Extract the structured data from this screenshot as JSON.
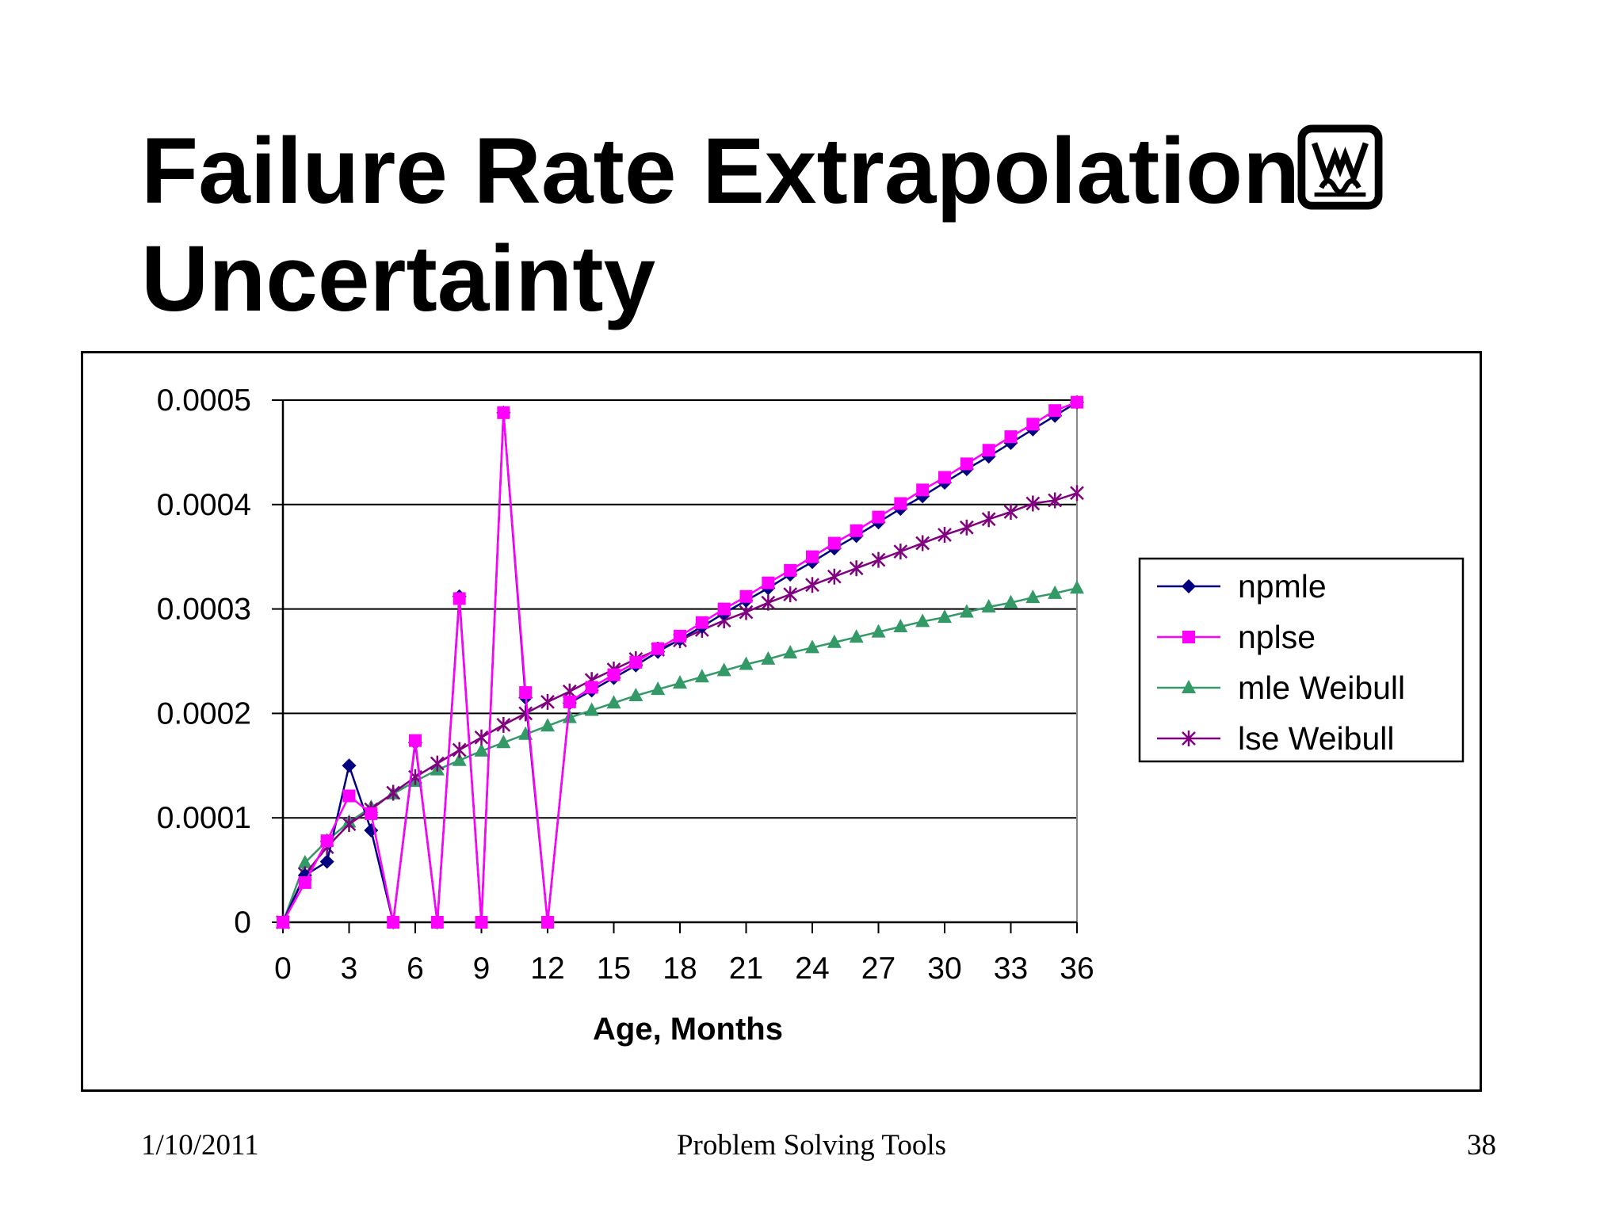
{
  "slide": {
    "title_line1": "Failure Rate Extrapolation",
    "title_line2": "Uncertainty"
  },
  "footer": {
    "date": "1/10/2011",
    "center": "Problem Solving Tools",
    "page": "38"
  },
  "icons": {
    "logo": "wm-monogram-logo"
  },
  "colors": {
    "npmle": "#000080",
    "nplse": "#ff00ff",
    "mle_weibull": "#339966",
    "lse_weibull": "#800080"
  },
  "chart_data": {
    "type": "line",
    "title": "",
    "xlabel": "Age, Months",
    "ylabel": "",
    "xlim": [
      0,
      36
    ],
    "ylim": [
      0,
      0.0005
    ],
    "x_ticks": [
      0,
      3,
      6,
      9,
      12,
      15,
      18,
      21,
      24,
      27,
      30,
      33,
      36
    ],
    "y_ticks": [
      0,
      0.0001,
      0.0002,
      0.0003,
      0.0004,
      0.0005
    ],
    "y_tick_labels": [
      "0",
      "0.0001",
      "0.0002",
      "0.0003",
      "0.0004",
      "0.0005"
    ],
    "grid": "horizontal",
    "legend_position": "right",
    "x": [
      0,
      1,
      2,
      3,
      4,
      5,
      6,
      7,
      8,
      9,
      10,
      11,
      12,
      13,
      14,
      15,
      16,
      17,
      18,
      19,
      20,
      21,
      22,
      23,
      24,
      25,
      26,
      27,
      28,
      29,
      30,
      31,
      32,
      33,
      34,
      35,
      36
    ],
    "series": [
      {
        "name": "npmle",
        "marker": "diamond",
        "x": [
          0,
          1,
          2,
          3,
          4,
          5,
          6,
          7,
          8,
          9,
          10,
          11,
          12,
          13,
          14,
          15,
          16,
          17,
          18,
          19,
          20,
          21,
          22,
          23,
          24,
          25,
          26,
          27,
          28,
          29,
          30,
          31,
          32,
          33,
          34,
          35,
          36
        ],
        "values": [
          0,
          4.5e-05,
          5.8e-05,
          0.00015,
          8.8e-05,
          0,
          0.000172,
          0,
          0.000312,
          0,
          0.000488,
          0.000215,
          0,
          0.00021,
          0.000222,
          0.000234,
          0.000246,
          0.000259,
          0.000271,
          0.000283,
          0.000296,
          0.000308,
          0.00032,
          0.000333,
          0.000345,
          0.000358,
          0.00037,
          0.000383,
          0.000396,
          0.000408,
          0.000421,
          0.000434,
          0.000446,
          0.000459,
          0.000472,
          0.000485,
          0.000498
        ]
      },
      {
        "name": "nplse",
        "marker": "square",
        "x": [
          0,
          1,
          2,
          3,
          4,
          5,
          6,
          7,
          8,
          9,
          10,
          11,
          12,
          13,
          14,
          15,
          16,
          17,
          18,
          19,
          20,
          21,
          22,
          23,
          24,
          25,
          26,
          27,
          28,
          29,
          30,
          31,
          32,
          33,
          34,
          35,
          36
        ],
        "values": [
          0,
          3.8e-05,
          7.8e-05,
          0.000121,
          0.000104,
          0,
          0.000174,
          0,
          0.00031,
          0,
          0.000488,
          0.00022,
          0,
          0.000211,
          0.000225,
          0.000237,
          0.000249,
          0.000262,
          0.000274,
          0.000287,
          0.0003,
          0.000312,
          0.000325,
          0.000337,
          0.00035,
          0.000363,
          0.000375,
          0.000388,
          0.000401,
          0.000414,
          0.000426,
          0.000439,
          0.000452,
          0.000465,
          0.000477,
          0.00049,
          0.000498
        ]
      },
      {
        "name": "mle Weibull",
        "marker": "triangle",
        "x": [
          0,
          1,
          2,
          3,
          4,
          5,
          6,
          7,
          8,
          9,
          10,
          11,
          12,
          13,
          14,
          15,
          16,
          17,
          18,
          19,
          20,
          21,
          22,
          23,
          24,
          25,
          26,
          27,
          28,
          29,
          30,
          31,
          32,
          33,
          34,
          35,
          36
        ],
        "values": [
          0,
          5.7e-05,
          7.8e-05,
          9.6e-05,
          0.00011,
          0.000123,
          0.000135,
          0.000146,
          0.000155,
          0.000164,
          0.000172,
          0.00018,
          0.000188,
          0.000196,
          0.000203,
          0.00021,
          0.000217,
          0.000223,
          0.000229,
          0.000235,
          0.000241,
          0.000247,
          0.000252,
          0.000258,
          0.000263,
          0.000268,
          0.000273,
          0.000278,
          0.000283,
          0.000288,
          0.000292,
          0.000297,
          0.000302,
          0.000306,
          0.000311,
          0.000315,
          0.00032
        ]
      },
      {
        "name": "lse Weibull",
        "marker": "asterisk",
        "x": [
          0,
          1,
          2,
          3,
          4,
          5,
          6,
          7,
          8,
          9,
          10,
          11,
          12,
          13,
          14,
          15,
          16,
          17,
          18,
          19,
          20,
          21,
          22,
          23,
          24,
          25,
          26,
          27,
          28,
          29,
          30,
          31,
          32,
          33,
          34,
          35,
          36
        ],
        "values": [
          0,
          4.6e-05,
          7.2e-05,
          9.4e-05,
          0.000108,
          0.000124,
          0.000139,
          0.000152,
          0.000165,
          0.000177,
          0.000189,
          0.0002,
          0.000211,
          0.000221,
          0.000232,
          0.000242,
          0.000252,
          0.000261,
          0.00027,
          0.00028,
          0.000289,
          0.000297,
          0.000306,
          0.000314,
          0.000323,
          0.000331,
          0.000339,
          0.000347,
          0.000355,
          0.000363,
          0.000371,
          0.000378,
          0.000386,
          0.000393,
          0.000401,
          0.000404,
          0.000411
        ]
      }
    ]
  }
}
